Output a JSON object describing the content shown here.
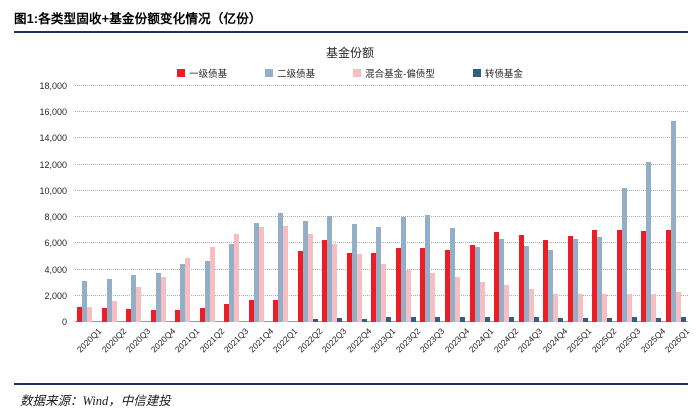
{
  "figure": {
    "header_title": "图1:各类型固收+基金份额变化情况（亿份）",
    "footer_source": "数据来源：Wind，中信建投"
  },
  "colors": {
    "rule_navy": "#17375E",
    "red": "#EE1C25",
    "steel_blue": "#93AFC7",
    "pink": "#F5BEC3",
    "dark_blue": "#2F5F87",
    "gridline": "#ABABAB",
    "axis": "#9B9B9B"
  },
  "chart_data": {
    "type": "bar",
    "title": "基金份额",
    "legend_position": "top",
    "grid": "dotted-horizontal",
    "ylim": [
      0,
      18000
    ],
    "ytick_step": 2000,
    "yticks": [
      {
        "value": 0,
        "label": "0"
      },
      {
        "value": 2000,
        "label": "2,000"
      },
      {
        "value": 4000,
        "label": "4,000"
      },
      {
        "value": 6000,
        "label": "6,000"
      },
      {
        "value": 8000,
        "label": "8,000"
      },
      {
        "value": 10000,
        "label": "10,000"
      },
      {
        "value": 12000,
        "label": "12,000"
      },
      {
        "value": 14000,
        "label": "14,000"
      },
      {
        "value": 16000,
        "label": "16,000"
      },
      {
        "value": 18000,
        "label": "18,000"
      }
    ],
    "categories": [
      "2020Q1",
      "2020Q2",
      "2020Q3",
      "2020Q4",
      "2021Q1",
      "2021Q2",
      "2021Q3",
      "2021Q4",
      "2022Q1",
      "2022Q2",
      "2022Q3",
      "2022Q4",
      "2023Q1",
      "2023Q2",
      "2023Q3",
      "2023Q4",
      "2024Q1",
      "2024Q2",
      "2024Q3",
      "2024Q4",
      "2025Q1",
      "2025Q2",
      "2025Q3",
      "2025Q4",
      "2026Q1"
    ],
    "series": [
      {
        "name": "一级债基",
        "color_key": "red",
        "values": [
          1150,
          1100,
          1000,
          900,
          900,
          1100,
          1350,
          1700,
          1700,
          5400,
          6250,
          5270,
          5300,
          5670,
          5630,
          5520,
          5860,
          6850,
          6600,
          6250,
          6550,
          7050,
          7040,
          6970,
          7020
        ]
      },
      {
        "name": "二级债基",
        "color_key": "steel_blue",
        "values": [
          3150,
          3300,
          3600,
          3770,
          4400,
          4680,
          5950,
          7550,
          8350,
          7680,
          8100,
          7480,
          7250,
          7980,
          8170,
          7150,
          5740,
          6300,
          5790,
          5490,
          6300,
          6500,
          10240,
          12180,
          15320
        ]
      },
      {
        "name": "混合基金-偏债型",
        "color_key": "pink",
        "values": [
          1150,
          1570,
          2660,
          3470,
          4900,
          5720,
          6750,
          7250,
          7350,
          6680,
          5930,
          5180,
          4440,
          3980,
          3730,
          3420,
          3050,
          2790,
          2540,
          2140,
          2150,
          2150,
          2110,
          2110,
          2310
        ]
      },
      {
        "name": "转债基金",
        "color_key": "dark_blue",
        "values": [
          0,
          0,
          0,
          0,
          0,
          0,
          0,
          0,
          0,
          250,
          300,
          260,
          350,
          380,
          420,
          400,
          400,
          350,
          350,
          300,
          300,
          300,
          350,
          300,
          350
        ]
      }
    ]
  }
}
